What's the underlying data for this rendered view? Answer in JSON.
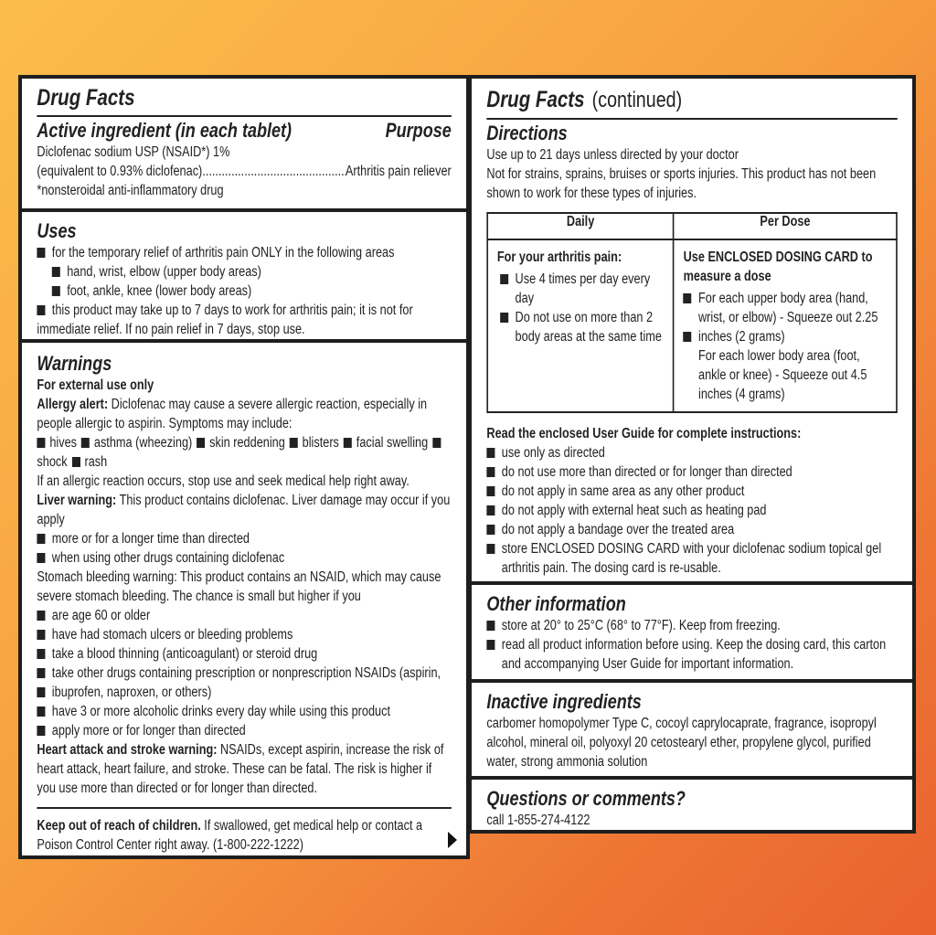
{
  "left": {
    "title": "Drug Facts",
    "active": {
      "heading": "Active ingredient (in each tablet)",
      "purpose_heading": "Purpose",
      "line1": "Diclofenac sodium USP (NSAID*) 1%",
      "line2": "(equivalent to 0.93% diclofenac)",
      "purpose": "Arthritis pain reliever",
      "footnote": "*nonsteroidal anti-inflammatory drug"
    },
    "uses": {
      "heading": "Uses",
      "items": [
        {
          "level": 1,
          "text": "for the temporary relief of arthritis pain ONLY in the following areas"
        },
        {
          "level": 2,
          "text": "hand, wrist, elbow (upper body areas)"
        },
        {
          "level": 2,
          "text": "foot, ankle, knee (lower body areas)"
        },
        {
          "level": 0,
          "text": "this product may take up to 7 days to work for arthritis pain; it is not for immediate relief. If no pain relief in 7 days, stop use."
        }
      ]
    },
    "warnings": {
      "heading": "Warnings",
      "blocks": [
        {
          "type": "p",
          "bold": "For external use only",
          "text": ""
        },
        {
          "type": "p",
          "bold": "Allergy alert:",
          "text": " Diclofenac may cause a severe allergic reaction, especially in people allergic to aspirin. Symptoms may include:"
        },
        {
          "type": "inline",
          "items": [
            "hives",
            "asthma (wheezing)",
            "skin reddening",
            "blisters",
            "facial swelling",
            "shock",
            "rash"
          ]
        },
        {
          "type": "p",
          "bold": "",
          "text": "If an allergic reaction occurs, stop use and seek medical help right away."
        },
        {
          "type": "p",
          "bold": "Liver warning:",
          "text": " This product contains diclofenac. Liver damage may occur if you apply"
        },
        {
          "type": "bullet",
          "text": "more or for a longer time than directed"
        },
        {
          "type": "bullet",
          "text": "when using other drugs containing diclofenac"
        },
        {
          "type": "p",
          "bold": "",
          "text": "Stomach bleeding warning: This product contains an NSAID, which may cause severe stomach bleeding. The chance is small but higher if you"
        },
        {
          "type": "bullet",
          "text": "are age 60 or older"
        },
        {
          "type": "bullet",
          "text": "have had stomach ulcers or bleeding problems"
        },
        {
          "type": "bullet",
          "text": "take a blood thinning (anticoagulant) or steroid drug"
        },
        {
          "type": "bullet",
          "text": "take other drugs containing prescription or nonprescription NSAIDs (aspirin,"
        },
        {
          "type": "bullet",
          "text": "ibuprofen, naproxen, or others)"
        },
        {
          "type": "bullet",
          "text": "have 3 or more alcoholic drinks every day while using this product"
        },
        {
          "type": "bullet",
          "text": "apply more or for longer than directed"
        },
        {
          "type": "p",
          "bold": "Heart attack and stroke warning:",
          "text": " NSAIDs, except aspirin, increase the risk of heart attack, heart failure, and stroke. These can be fatal. The risk is higher if you use more than directed or for longer than directed."
        }
      ],
      "keep_out_bold": "Keep out of reach of children.",
      "keep_out_text": " If swallowed, get medical help or contact a Poison Control Center right away. (1-800-222-1222)"
    },
    "next_icon": "triangle-right-icon"
  },
  "right": {
    "title": "Drug Facts",
    "title_suffix": "(continued)",
    "directions": {
      "heading": "Directions",
      "lines": [
        "Use up to 21 days unless directed by your doctor",
        "Not for strains, sprains, bruises or sports injuries. This product has not been shown to work for these types of injuries."
      ],
      "table": {
        "headers": [
          "Daily",
          "Per Dose"
        ],
        "daily_heading": "For your arthritis pain:",
        "daily_items": [
          "Use 4 times per day every day",
          "Do not use on more than 2 body areas  at the same time"
        ],
        "dose_heading": "Use ENCLOSED DOSING CARD to measure a dose",
        "dose_item1": "For each upper body area (hand, wrist, or elbow) - Squeeze out 2.25",
        "dose_item2": "inches (2 grams)",
        "dose_item3": "For each lower body area (foot, ankle or knee) - Squeeze out 4.5 inches (4 grams)"
      },
      "guide_heading": "Read the enclosed User Guide for complete instructions:",
      "guide_items": [
        "use only as directed",
        "do not use more than directed or for longer than directed",
        "do not apply in same area as any other product",
        "do not apply with external heat such as heating pad",
        "do not apply a bandage over the treated area",
        "store ENCLOSED DOSING CARD with your diclofenac sodium topical gel arthritis pain. The dosing card is re-usable."
      ]
    },
    "other": {
      "heading": "Other information",
      "items": [
        "store at 20° to 25°C (68° to 77°F). Keep from freezing.",
        "read all product information before using. Keep the dosing card, this carton and accompanying User Guide for important information."
      ]
    },
    "inactive": {
      "heading": "Inactive ingredients",
      "text": "carbomer homopolymer Type C, cocoyl caprylocaprate, fragrance, isopropyl alcohol, mineral oil, polyoxyl 20 cetostearyl ether, propylene glycol, purified water, strong ammonia solution"
    },
    "questions": {
      "heading": "Questions or comments?",
      "text": "call 1-855-274-4122"
    }
  },
  "colors": {
    "background_top": "#fcbd4c",
    "background_bottom": "#e9622f",
    "border": "#1e1e1e"
  }
}
